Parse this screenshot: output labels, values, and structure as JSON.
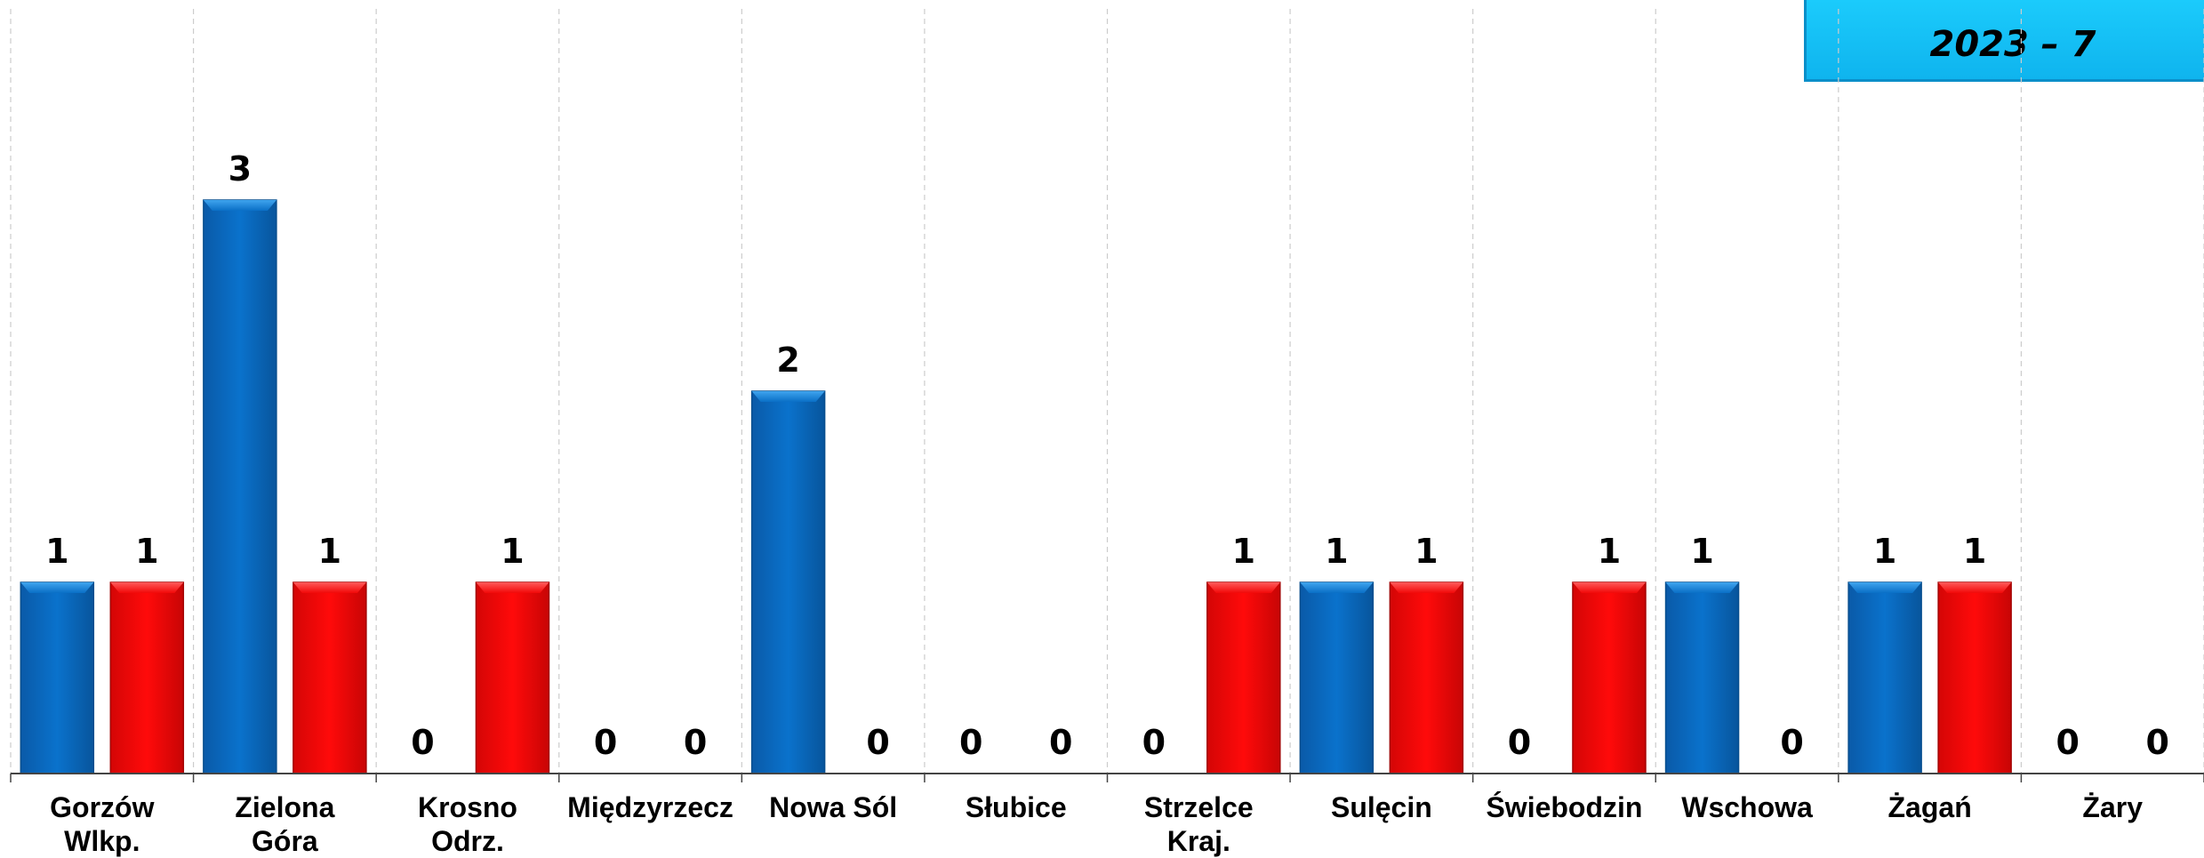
{
  "legend": {
    "label": "2023 – 7"
  },
  "colors": {
    "series_a": "#0a6fc6",
    "series_b": "#f20808",
    "axis": "#444444",
    "grid": "#cccccc"
  },
  "chart_data": {
    "type": "bar",
    "title": "",
    "xlabel": "",
    "ylabel": "",
    "ylim": [
      0,
      4
    ],
    "grid": true,
    "categories": [
      [
        "Gorzów",
        "Wlkp."
      ],
      [
        "Zielona",
        "Góra"
      ],
      [
        "Krosno",
        "Odrz."
      ],
      [
        "Międzyrzecz"
      ],
      [
        "Nowa Sól"
      ],
      [
        "Słubice"
      ],
      [
        "Strzelce",
        "Kraj."
      ],
      [
        "Sulęcin"
      ],
      [
        "Świebodzin"
      ],
      [
        "Wschowa"
      ],
      [
        "Żagań"
      ],
      [
        "Żary"
      ]
    ],
    "series": [
      {
        "values": [
          1,
          3,
          0,
          0,
          2,
          0,
          0,
          1,
          0,
          1,
          1,
          0
        ]
      },
      {
        "values": [
          1,
          1,
          1,
          0,
          0,
          0,
          1,
          1,
          1,
          0,
          1,
          0
        ]
      }
    ]
  }
}
